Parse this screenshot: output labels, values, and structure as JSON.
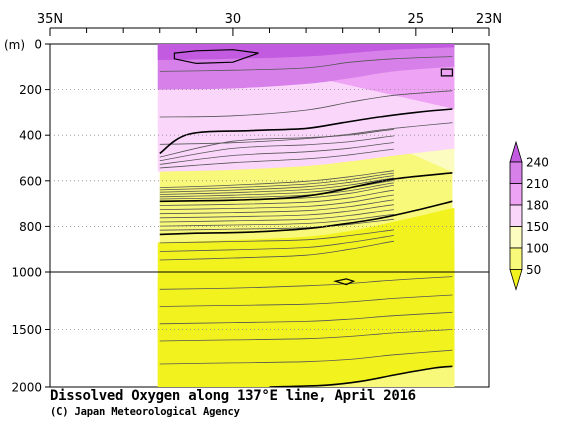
{
  "chart_data": {
    "type": "heatmap",
    "title": "Dissolved Oxygen along 137°E line, April 2016",
    "credit": "(C) Japan Meteorological Agency",
    "y_unit_label": "(m)",
    "x_axis": {
      "orientation": "latitude, north to south",
      "range": [
        35,
        23
      ],
      "tick_labels": [
        {
          "value": 35,
          "label": "35N"
        },
        {
          "value": 30,
          "label": "30"
        },
        {
          "value": 25,
          "label": "25"
        },
        {
          "value": 23,
          "label": "23N"
        }
      ],
      "minor_ticks": [
        34,
        33,
        32,
        31,
        29,
        28,
        27,
        26,
        24
      ]
    },
    "y_axis": {
      "range": [
        0,
        2000
      ],
      "scale": "piecewise linear: 0-1000 m stretched, 1000-2000 m compressed",
      "tick_labels": [
        {
          "value": 0,
          "label": "0"
        },
        {
          "value": 200,
          "label": "200"
        },
        {
          "value": 400,
          "label": "400"
        },
        {
          "value": 600,
          "label": "600"
        },
        {
          "value": 800,
          "label": "800"
        },
        {
          "value": 1000,
          "label": "1000"
        },
        {
          "value": 1500,
          "label": "1500"
        },
        {
          "value": 2000,
          "label": "2000"
        }
      ]
    },
    "data_extent": {
      "lat_north": 32.0,
      "lat_south": 24.0,
      "depth_max": 2000
    },
    "grid": "dotted horizontal gridlines at labelled depths; solid reference line at 1000 m",
    "colorbar": {
      "placement": "right",
      "levels": [
        50,
        100,
        150,
        180,
        210,
        240
      ],
      "labels": [
        "240",
        "210",
        "180",
        "150",
        "100",
        "50"
      ],
      "colors": [
        "#f2f21e",
        "#f8f87a",
        "#fcfcc0",
        "#fbd6fb",
        "#eea3f4",
        "#d880ea",
        "#c25be0"
      ]
    },
    "bold_contours": [
      {
        "value": 180,
        "points": [
          [
            32.0,
            480
          ],
          [
            31.2,
            395
          ],
          [
            29.5,
            380
          ],
          [
            28.0,
            370
          ],
          [
            27.0,
            345
          ],
          [
            26.0,
            320
          ],
          [
            25.0,
            300
          ],
          [
            24.0,
            285
          ]
        ]
      },
      {
        "value": 150,
        "points": [
          [
            32.0,
            690
          ],
          [
            30.0,
            685
          ],
          [
            28.5,
            675
          ],
          [
            27.5,
            655
          ],
          [
            26.5,
            620
          ],
          [
            25.5,
            590
          ],
          [
            24.0,
            565
          ]
        ]
      },
      {
        "value": 100,
        "points": [
          [
            32.0,
            835
          ],
          [
            31.0,
            830
          ],
          [
            29.5,
            825
          ],
          [
            28.0,
            810
          ],
          [
            27.0,
            790
          ],
          [
            26.0,
            765
          ],
          [
            25.0,
            730
          ],
          [
            24.0,
            690
          ]
        ]
      },
      {
        "value": 100,
        "points": [
          [
            29.0,
            2000
          ],
          [
            27.5,
            1985
          ],
          [
            26.5,
            1950
          ],
          [
            25.5,
            1890
          ],
          [
            24.5,
            1835
          ],
          [
            24.0,
            1820
          ]
        ]
      }
    ],
    "closed_contours": [
      {
        "value": 210,
        "points": [
          [
            31.6,
            40
          ],
          [
            31.0,
            30
          ],
          [
            30.0,
            25
          ],
          [
            29.3,
            40
          ],
          [
            30.0,
            80
          ],
          [
            31.0,
            85
          ],
          [
            31.6,
            65
          ],
          [
            31.6,
            40
          ]
        ]
      },
      {
        "value": 240,
        "points": [
          [
            24.3,
            110
          ],
          [
            24.0,
            110
          ],
          [
            24.0,
            140
          ],
          [
            24.3,
            140
          ],
          [
            24.3,
            110
          ]
        ]
      },
      {
        "value": 100,
        "points": [
          [
            27.2,
            1080
          ],
          [
            26.9,
            1060
          ],
          [
            26.7,
            1080
          ],
          [
            26.9,
            1110
          ],
          [
            27.2,
            1080
          ]
        ]
      }
    ]
  }
}
